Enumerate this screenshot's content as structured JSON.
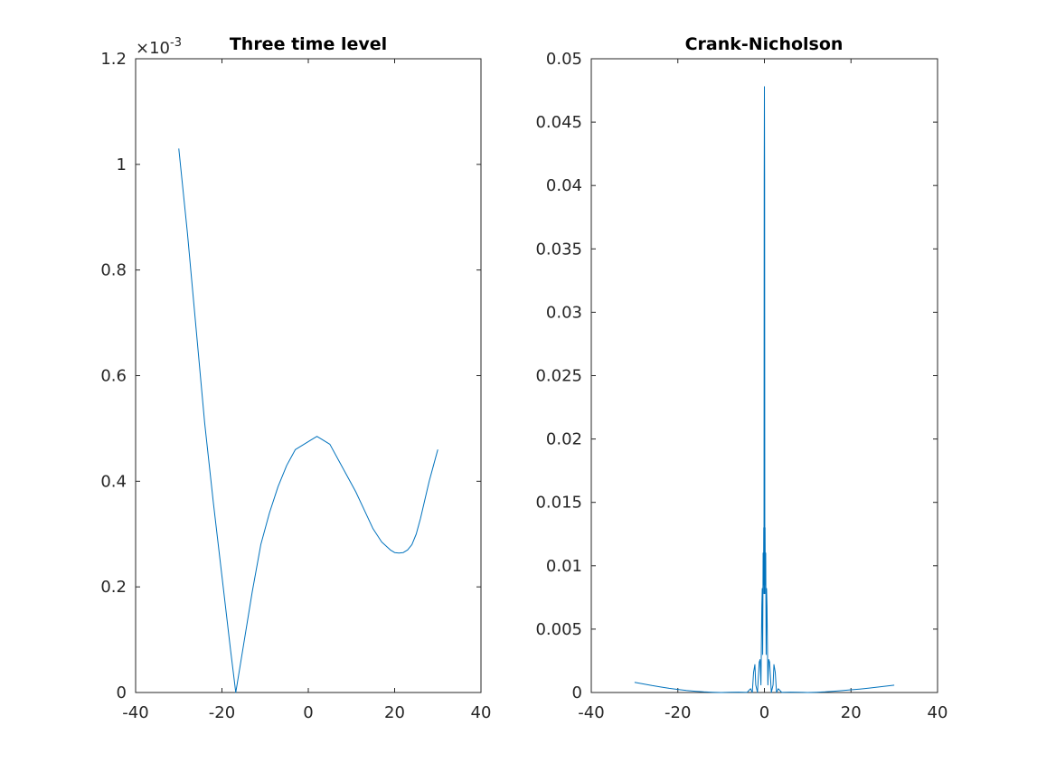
{
  "figure": {
    "background": "#ffffff",
    "axis_color": "#262626",
    "title_color": "#000000"
  },
  "chart_data": [
    {
      "type": "line",
      "title": "Three time level",
      "xlabel": "",
      "ylabel": "",
      "xlim": [
        -40,
        40
      ],
      "ylim": [
        0,
        0.0012
      ],
      "exponent_label": "×10",
      "exponent_value": "-3",
      "x_ticks": [
        -40,
        -20,
        0,
        20,
        40
      ],
      "x_tick_labels": [
        "-40",
        "-20",
        "0",
        "20",
        "40"
      ],
      "y_ticks": [
        0,
        0.0002,
        0.0004,
        0.0006,
        0.0008,
        0.001,
        0.0012
      ],
      "y_tick_labels": [
        "0",
        "0.2",
        "0.4",
        "0.6",
        "0.8",
        "1",
        "1.2"
      ],
      "grid": false,
      "series": [
        {
          "color": "#0072bd",
          "x": [
            -30,
            -28,
            -26,
            -24,
            -22,
            -20,
            -18,
            -16.8,
            -15,
            -13,
            -11,
            -9,
            -7,
            -5,
            -3,
            -1,
            1,
            2,
            3,
            5,
            7,
            9,
            11,
            13,
            15,
            17,
            19,
            20,
            21,
            22,
            23,
            24,
            25,
            26,
            27,
            28,
            29,
            30
          ],
          "y": [
            0.00103,
            0.00087,
            0.00069,
            0.00051,
            0.00036,
            0.00022,
            8e-05,
            0.0,
            9e-05,
            0.00019,
            0.00028,
            0.00034,
            0.00039,
            0.00043,
            0.00046,
            0.00047,
            0.00048,
            0.000485,
            0.00048,
            0.00047,
            0.00044,
            0.00041,
            0.00038,
            0.000345,
            0.00031,
            0.000285,
            0.00027,
            0.000265,
            0.000264,
            0.000265,
            0.00027,
            0.00028,
            0.0003,
            0.00033,
            0.000365,
            0.0004,
            0.00043,
            0.00046
          ]
        }
      ]
    },
    {
      "type": "line",
      "title": "Crank-Nicholson",
      "xlabel": "",
      "ylabel": "",
      "xlim": [
        -40,
        40
      ],
      "ylim": [
        0,
        0.05
      ],
      "x_ticks": [
        -40,
        -20,
        0,
        20,
        40
      ],
      "x_tick_labels": [
        "-40",
        "-20",
        "0",
        "20",
        "40"
      ],
      "y_ticks": [
        0,
        0.005,
        0.01,
        0.015,
        0.02,
        0.025,
        0.03,
        0.035,
        0.04,
        0.045,
        0.05
      ],
      "y_tick_labels": [
        "0",
        "0.005",
        "0.01",
        "0.015",
        "0.02",
        "0.025",
        "0.03",
        "0.035",
        "0.04",
        "0.045",
        "0.05"
      ],
      "grid": false,
      "series": [
        {
          "color": "#0072bd",
          "x": [
            -30,
            -28,
            -26,
            -24,
            -22,
            -20,
            -18,
            -16,
            -14,
            -12,
            -10,
            -8,
            -6,
            -4,
            -3.2,
            -2.8,
            -2.5,
            -2.2,
            -2,
            -1.6,
            -1.2,
            -1,
            -0.8,
            -0.6,
            -0.5,
            -0.4,
            -0.3,
            -0.2,
            -0.15,
            -0.1,
            -0.05,
            0,
            0.05,
            0.1,
            0.15,
            0.2,
            0.3,
            0.4,
            0.5,
            0.6,
            0.8,
            1,
            1.2,
            1.6,
            2,
            2.2,
            2.5,
            2.8,
            3.2,
            4,
            6,
            8,
            10,
            12,
            14,
            16,
            18,
            20,
            22,
            24,
            26,
            28,
            30
          ],
          "y": [
            0.0008,
            0.00068,
            0.00055,
            0.00044,
            0.00033,
            0.00024,
            0.00016,
            0.0001,
            5e-05,
            2e-05,
            0.0,
            2e-05,
            3e-05,
            1e-05,
            0.0003,
            0.0,
            0.0016,
            0.0022,
            0.0006,
            0.0,
            0.0024,
            0.0026,
            0.0006,
            0.0068,
            0.0082,
            0.003,
            0.011,
            0.0085,
            0.013,
            0.0078,
            0.0405,
            0.0478,
            0.0405,
            0.0078,
            0.013,
            0.0085,
            0.011,
            0.003,
            0.0082,
            0.0068,
            0.0006,
            0.0026,
            0.0024,
            0.0,
            0.0006,
            0.0022,
            0.0016,
            0.0,
            0.0003,
            1e-05,
            3e-05,
            2e-05,
            0.0,
            2e-05,
            5e-05,
            0.0001,
            0.00015,
            0.00021,
            0.00027,
            0.00034,
            0.00042,
            0.0005,
            0.00058
          ]
        }
      ]
    }
  ]
}
